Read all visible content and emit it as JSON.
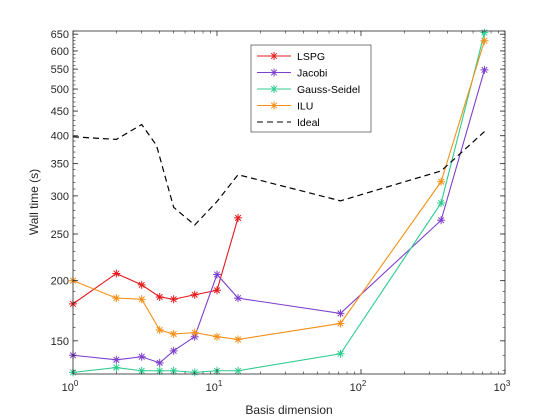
{
  "chart_data": {
    "type": "line",
    "title": "",
    "xlabel": "Basis dimension",
    "ylabel": "Wall time (s)",
    "xscale": "log",
    "yscale": "log",
    "xlim": [
      1,
      1000
    ],
    "ylim": [
      128,
      660
    ],
    "x_ticks": [
      1,
      10,
      100,
      1000
    ],
    "x_tick_labels": [
      [
        "10",
        "0"
      ],
      [
        "10",
        "1"
      ],
      [
        "10",
        "2"
      ],
      [
        "10",
        "3"
      ]
    ],
    "y_ticks": [
      150,
      200,
      250,
      300,
      350,
      400,
      450,
      500,
      550,
      600,
      650
    ],
    "y_tick_labels": [
      "150",
      "200",
      "250",
      "300",
      "350",
      "400",
      "450",
      "500",
      "550",
      "600",
      "650"
    ],
    "grid": false,
    "legend_position": "top-center",
    "series": [
      {
        "name": "LSPG",
        "color": "#e41a1c",
        "marker": "asterisk",
        "dash": "solid",
        "x": [
          1,
          2,
          3,
          4,
          5,
          7,
          10,
          14
        ],
        "y": [
          179,
          207,
          196,
          185,
          183,
          187,
          191,
          270
        ]
      },
      {
        "name": "Jacobi",
        "color": "#7e3fce",
        "marker": "asterisk",
        "dash": "solid",
        "x": [
          1,
          2,
          3,
          4,
          5,
          7,
          10,
          14,
          72,
          360,
          720
        ],
        "y": [
          140,
          137,
          139,
          135,
          143,
          153,
          206,
          184,
          171,
          267,
          548
        ]
      },
      {
        "name": "Gauss-Seidel",
        "color": "#2ecc8f",
        "marker": "asterisk",
        "dash": "solid",
        "x": [
          1,
          2,
          3,
          4,
          5,
          7,
          10,
          14,
          72,
          360,
          720
        ],
        "y": [
          129,
          132,
          130,
          130,
          130,
          129,
          130,
          130,
          141,
          290,
          655
        ]
      },
      {
        "name": "ILU",
        "color": "#f39019",
        "marker": "asterisk",
        "dash": "solid",
        "x": [
          1,
          2,
          3,
          4,
          5,
          7,
          10,
          14,
          72,
          360,
          720
        ],
        "y": [
          200,
          184,
          183,
          158,
          155,
          156,
          153,
          151,
          163,
          321,
          630
        ]
      },
      {
        "name": "Ideal",
        "color": "#000000",
        "marker": "none",
        "dash": "dashed",
        "x": [
          1,
          2,
          3,
          3.8,
          5,
          7,
          10,
          14,
          72,
          360,
          720
        ],
        "y": [
          398,
          393,
          422,
          382,
          284,
          261,
          292,
          332,
          293,
          338,
          408
        ]
      }
    ]
  }
}
